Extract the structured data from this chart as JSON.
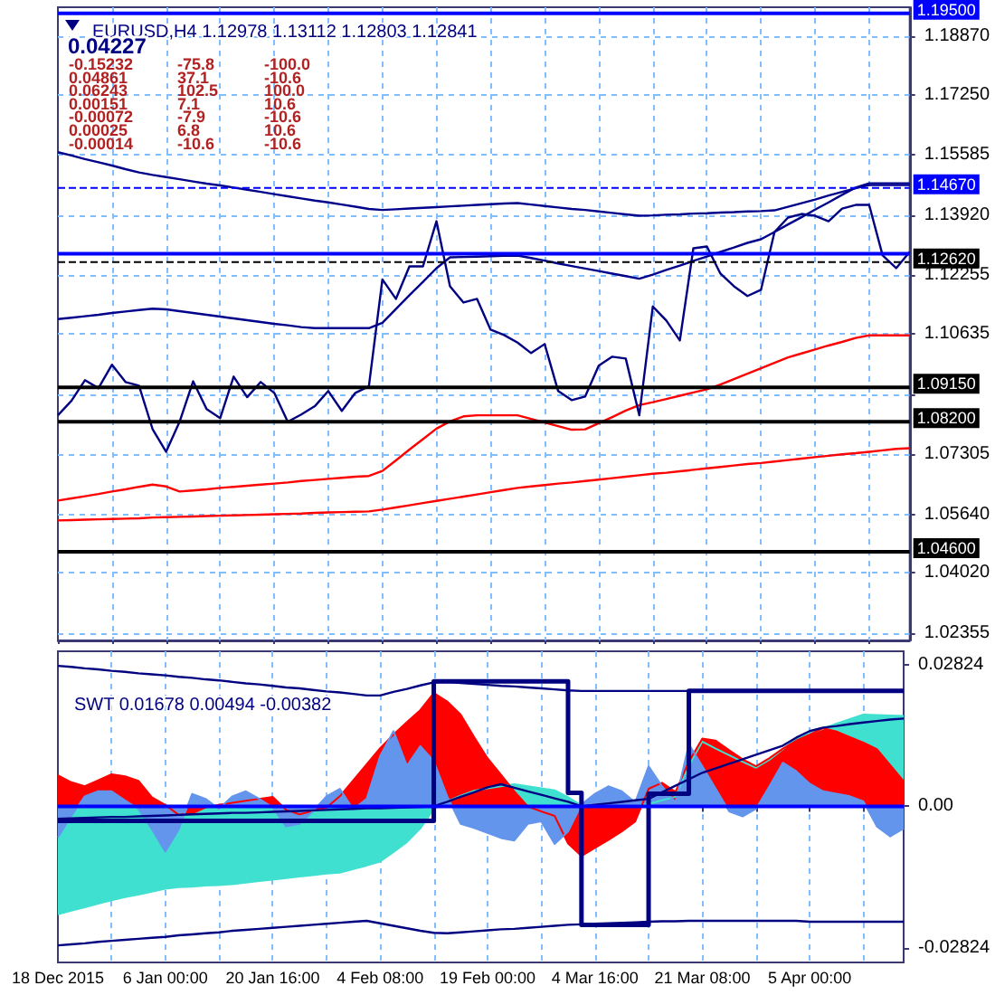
{
  "chart_data": [
    {
      "type": "line",
      "title": "EURUSD,H4 1.12978 1.13112 1.12803 1.12841",
      "annotations": [
        "0.04227",
        "-0.15232",
        "-75.8",
        "-100.0",
        "0.04861",
        "37.1",
        "-10.6",
        "0.06243",
        "102.5",
        "100.0",
        "0.00151",
        "7.1",
        "10.6",
        "-0.00072",
        "-7.9",
        "-10.6",
        "0.00025",
        "6.8",
        "10.6",
        "-0.00014",
        "-10.6",
        "-10.6"
      ],
      "categories": [
        null,
        null,
        null,
        null,
        null,
        null,
        null,
        null,
        null,
        null,
        null,
        null,
        null,
        null,
        null,
        null,
        null,
        null,
        null,
        null,
        null,
        null,
        null,
        null,
        null,
        null,
        null,
        null,
        null,
        null,
        null,
        null,
        null,
        null,
        null,
        null,
        null,
        null,
        null,
        null,
        null,
        null,
        null,
        null,
        null,
        null,
        null,
        null,
        null,
        null,
        null,
        null,
        null,
        null,
        null,
        null,
        null,
        null,
        null,
        null,
        null,
        null,
        null,
        null
      ],
      "ylim": [
        1.0215,
        1.1967
      ],
      "yticks": [
        {
          "value": 1.1887,
          "label": "1.18870"
        },
        {
          "value": 1.1725,
          "label": "1.17250"
        },
        {
          "value": 1.15585,
          "label": "1.15585"
        },
        {
          "value": 1.1392,
          "label": "1.13920"
        },
        {
          "value": 1.12255,
          "label": "1.12255"
        },
        {
          "value": 1.10635,
          "label": "1.10635"
        },
        {
          "value": 1.0897,
          "label": null
        },
        {
          "value": 1.07305,
          "label": "1.07305"
        },
        {
          "value": 1.0564,
          "label": "1.05640"
        },
        {
          "value": 1.0402,
          "label": "1.04020"
        },
        {
          "value": 1.02355,
          "label": "1.02355"
        }
      ],
      "tick_labels": "y",
      "grid": true,
      "ref_lines": [
        {
          "axis": "y",
          "value": 1.195,
          "label": "1.19500",
          "color": "#0000ff",
          "line_style": "solid"
        },
        {
          "axis": "y",
          "value": 1.1467,
          "label": "1.14670",
          "color": "#0000ff",
          "line_style": "dashed"
        },
        {
          "axis": "y",
          "value": 1.1285,
          "label": null,
          "color": "#0000ff",
          "line_style": "solid"
        },
        {
          "axis": "y",
          "value": 1.1262,
          "label": "1.12620",
          "color": "#000000",
          "line_style": "dashed"
        },
        {
          "axis": "y",
          "value": 1.0915,
          "label": "1.09150",
          "color": "#000000",
          "line_style": "solid"
        },
        {
          "axis": "y",
          "value": 1.082,
          "label": "1.08200",
          "color": "#000000",
          "line_style": "solid"
        },
        {
          "axis": "y",
          "value": 1.046,
          "label": "1.04600",
          "color": "#000000",
          "line_style": "solid"
        }
      ],
      "series": [
        {
          "color": "#ff0000",
          "values": [
            1.0602,
            1.0608,
            1.0614,
            1.062,
            1.0627,
            1.0633,
            1.064,
            1.0646,
            1.0641,
            1.0627,
            1.063,
            1.0633,
            1.0637,
            1.064,
            1.0643,
            1.0646,
            1.0649,
            1.0652,
            1.0656,
            1.0659,
            1.0662,
            1.0665,
            1.0668,
            1.067,
            1.0684,
            1.0713,
            1.0743,
            1.0772,
            1.0801,
            1.0821,
            1.0835,
            1.0838,
            1.0838,
            1.0838,
            1.0838,
            1.0828,
            1.0818,
            1.0808,
            1.0798,
            1.0799,
            1.0816,
            1.0833,
            1.0851,
            1.0866,
            1.0874,
            1.0883,
            1.0892,
            1.0901,
            1.091,
            1.0923,
            1.0938,
            1.0953,
            1.0968,
            1.0983,
            1.0998,
            1.1009,
            1.102,
            1.1031,
            1.1041,
            1.1052,
            1.1059,
            1.1059,
            1.1059,
            1.1059
          ]
        },
        {
          "color": "#ff0000",
          "values": [
            1.0547,
            1.0548,
            1.0549,
            1.055,
            1.0551,
            1.0552,
            1.0553,
            1.0555,
            1.0556,
            1.0557,
            1.0558,
            1.0559,
            1.056,
            1.0561,
            1.0562,
            1.0563,
            1.0564,
            1.0565,
            1.0566,
            1.0568,
            1.0569,
            1.057,
            1.0571,
            1.0572,
            1.0577,
            1.0583,
            1.0589,
            1.0595,
            1.0601,
            1.0607,
            1.0613,
            1.0619,
            1.0625,
            1.0631,
            1.0637,
            1.0641,
            1.0645,
            1.0649,
            1.0652,
            1.0656,
            1.066,
            1.0664,
            1.0668,
            1.0672,
            1.0676,
            1.0679,
            1.0683,
            1.0687,
            1.0691,
            1.0695,
            1.0699,
            1.0703,
            1.0706,
            1.071,
            1.0714,
            1.0718,
            1.0722,
            1.0726,
            1.073,
            1.0733,
            1.0737,
            1.0741,
            1.0745,
            1.0747
          ]
        },
        {
          "color": "#00008b",
          "values": [
            1.1566,
            1.1557,
            1.1547,
            1.1538,
            1.1529,
            1.1519,
            1.151,
            1.1503,
            1.1497,
            1.1491,
            1.1485,
            1.1479,
            1.1474,
            1.1468,
            1.1462,
            1.1456,
            1.145,
            1.1444,
            1.1438,
            1.1432,
            1.1427,
            1.1421,
            1.1415,
            1.1409,
            1.1406,
            1.1408,
            1.141,
            1.1412,
            1.1414,
            1.1416,
            1.1418,
            1.142,
            1.1422,
            1.1424,
            1.1425,
            1.1421,
            1.1417,
            1.1413,
            1.1409,
            1.1406,
            1.1402,
            1.1398,
            1.1394,
            1.139,
            1.1391,
            1.1393,
            1.1394,
            1.1396,
            1.1397,
            1.1399,
            1.14,
            1.1402,
            1.1403,
            1.1405,
            1.1415,
            1.1425,
            1.1435,
            1.1446,
            1.1456,
            1.1466,
            1.1475,
            1.1475,
            1.1475,
            1.1475
          ]
        },
        {
          "color": "#00008b",
          "values": [
            1.1104,
            1.1108,
            1.1112,
            1.1116,
            1.1121,
            1.1125,
            1.1129,
            1.1133,
            1.1131,
            1.1126,
            1.1121,
            1.1116,
            1.1111,
            1.1106,
            1.1101,
            1.1096,
            1.1091,
            1.1087,
            1.1082,
            1.1079,
            1.1079,
            1.1079,
            1.1079,
            1.1079,
            1.1094,
            1.1132,
            1.117,
            1.1207,
            1.1245,
            1.1275,
            1.1276,
            1.1277,
            1.1278,
            1.1279,
            1.128,
            1.1273,
            1.1266,
            1.1258,
            1.1251,
            1.1244,
            1.1237,
            1.123,
            1.1223,
            1.1216,
            1.1227,
            1.124,
            1.1252,
            1.1265,
            1.1277,
            1.129,
            1.1302,
            1.1315,
            1.1325,
            1.1345,
            1.1366,
            1.1386,
            1.1407,
            1.1427,
            1.1448,
            1.1468,
            1.148,
            1.148,
            1.148,
            1.148
          ]
        },
        {
          "color": "#000080",
          "values": [
            1.0838,
            1.0878,
            1.0935,
            1.0913,
            1.0978,
            1.093,
            1.092,
            1.08,
            1.0737,
            1.082,
            1.0932,
            1.0855,
            1.083,
            1.0945,
            1.0888,
            1.093,
            1.09,
            1.082,
            1.084,
            1.0863,
            1.0905,
            1.085,
            1.09,
            1.0918,
            1.1214,
            1.116,
            1.125,
            1.125,
            1.1375,
            1.1195,
            1.115,
            1.116,
            1.1075,
            1.106,
            1.1039,
            1.101,
            1.1035,
            1.0905,
            1.088,
            1.089,
            1.0975,
            1.1,
            1.0995,
            1.0838,
            1.1139,
            1.11,
            1.1045,
            1.13,
            1.1305,
            1.123,
            1.1195,
            1.1168,
            1.1185,
            1.1345,
            1.1385,
            1.1395,
            1.139,
            1.1375,
            1.141,
            1.142,
            1.142,
            1.128,
            1.1245,
            1.129
          ]
        }
      ]
    },
    {
      "type": "area",
      "title": "SWT 0.01678 0.00494 -0.00382",
      "categories": [
        "18 Dec 2015",
        null,
        null,
        null,
        null,
        null,
        null,
        null,
        "6 Jan 00:00",
        null,
        null,
        null,
        null,
        null,
        null,
        null,
        "20 Jan 16:00",
        null,
        null,
        null,
        null,
        null,
        null,
        null,
        "4 Feb 08:00",
        null,
        null,
        null,
        null,
        null,
        null,
        null,
        "19 Feb 00:00",
        null,
        null,
        null,
        null,
        null,
        null,
        null,
        "4 Mar 16:00",
        null,
        null,
        null,
        null,
        null,
        null,
        null,
        "21 Mar 08:00",
        null,
        null,
        null,
        null,
        null,
        null,
        null,
        "5 Apr 00:00",
        null,
        null,
        null,
        null,
        null,
        null,
        null
      ],
      "ylim": [
        -0.0311,
        0.0309
      ],
      "yticks": [
        {
          "value": 0.02824,
          "label": "0.02824"
        },
        {
          "value": 0,
          "label": "0.00"
        },
        {
          "value": -0.02824,
          "label": "-0.02824"
        }
      ],
      "grid": "x",
      "ref_lines": [
        {
          "axis": "y",
          "value": 0,
          "label": null,
          "color": "#0000ff",
          "line_style": "solid"
        }
      ],
      "series": [
        {
          "color": "#40e0d0",
          "values": [
            -0.0215,
            -0.0208,
            -0.0201,
            -0.0194,
            -0.0187,
            -0.0181,
            -0.0176,
            -0.017,
            -0.0164,
            -0.0161,
            -0.016,
            -0.0158,
            -0.0157,
            -0.0155,
            -0.0152,
            -0.0149,
            -0.0146,
            -0.0143,
            -0.014,
            -0.0137,
            -0.0134,
            -0.0132,
            -0.0125,
            -0.0118,
            -0.011,
            -0.0091,
            -0.0071,
            -0.0044,
            -0.0005,
            0.001,
            0.0021,
            0.0031,
            0.0036,
            0.004,
            0.0044,
            0.004,
            0.0036,
            0.0032,
            0.0018,
            0.0002,
            0,
            0,
            0,
            0,
            0.0005,
            0.0012,
            0.0019,
            0.008,
            0.0129,
            0.0115,
            0.0102,
            0.0089,
            0.0077,
            0.0093,
            0.0114,
            0.0136,
            0.0145,
            0.0155,
            0.0165,
            0.0174,
            0.0183,
            0.0182,
            0.0181,
            0.018
          ]
        },
        {
          "color": "#ff0000",
          "values": [
            0.0062,
            0.0048,
            0.004,
            0.0052,
            0.0064,
            0.006,
            0.0051,
            0.0018,
            0.0003,
            -0.0017,
            -0.0014,
            -0.0002,
            0.0003,
            0.0007,
            0.0011,
            0.0015,
            0.0019,
            -0.0007,
            -0.0016,
            -0.0009,
            -0.0003,
            0.002,
            0.0052,
            0.0084,
            0.0116,
            0.0143,
            0.0168,
            0.0192,
            0.0226,
            0.0209,
            0.0183,
            0.0138,
            0.0096,
            0.0063,
            0.003,
            0,
            -0.001,
            -0.0019,
            -0.0074,
            -0.0099,
            -0.0083,
            -0.0067,
            -0.005,
            -0.003,
            0.0035,
            0.0047,
            0.0029,
            0.0089,
            0.0135,
            0.0131,
            0.0112,
            0.0094,
            0.008,
            0.0096,
            0.0115,
            0.0131,
            0.0143,
            0.0156,
            0.0149,
            0.0138,
            0.0127,
            0.0114,
            0.0082,
            0.005
          ]
        },
        {
          "color": "#6495ed",
          "values": [
            -0.0062,
            -0.0019,
            0.002,
            0.003,
            0.003,
            0.0012,
            -0.0005,
            -0.0045,
            -0.009,
            -0.0046,
            0.0025,
            0.0015,
            -0.0005,
            0.002,
            0.003,
            0.0015,
            -0.0002,
            -0.004,
            -0.0035,
            -0.001,
            0.002,
            0.0035,
            -0.0006,
            0.0015,
            0.01,
            0.015,
            0.0081,
            0.012,
            0.009,
            0.002,
            -0.0035,
            -0.0043,
            -0.0053,
            -0.0063,
            -0.0068,
            -0.0035,
            -0.003,
            -0.0075,
            -0.005,
            0.0004,
            0.0025,
            0.004,
            0.003,
            0.0008,
            0.008,
            0.004,
            0.0008,
            0.0124,
            0.008,
            0.0035,
            -0.001,
            -0.002,
            -0.0005,
            0.004,
            0.0087,
            0.007,
            0.0045,
            0.003,
            0.0025,
            0.002,
            0.001,
            -0.004,
            -0.006,
            -0.0044
          ]
        },
        {
          "type": "line",
          "color": "#000080",
          "values": [
            -0.0025,
            -0.0024,
            -0.0023,
            -0.0022,
            -0.0021,
            -0.0021,
            -0.002,
            -0.0019,
            -0.0018,
            -0.0017,
            -0.0016,
            -0.0015,
            -0.0014,
            -0.0013,
            -0.0013,
            -0.0012,
            -0.0011,
            -0.001,
            -0.0009,
            -0.0008,
            -0.0007,
            -0.0006,
            -0.0005,
            -0.0004,
            -0.0004,
            -0.0003,
            -0.0002,
            -0.0001,
            0,
            0.0009,
            0.0019,
            0.0028,
            0.0038,
            0.0044,
            0.0037,
            0.003,
            0.0023,
            0.0016,
            0.0009,
            0,
            0.0003,
            0.0006,
            0.0009,
            0.0012,
            0.0015,
            0.0028,
            0.0041,
            0.0054,
            0.0067,
            0.0076,
            0.0085,
            0.0094,
            0.0103,
            0.0112,
            0.0121,
            0.0137,
            0.015,
            0.0157,
            0.016,
            0.0164,
            0.0167,
            0.017,
            0.0173,
            0.0175
          ]
        },
        {
          "type": "line",
          "color": "#000080",
          "values": [
            0.028,
            0.0278,
            0.0275,
            0.0273,
            0.027,
            0.0268,
            0.0265,
            0.0263,
            0.0261,
            0.0258,
            0.0256,
            0.0253,
            0.0251,
            0.0248,
            0.0245,
            0.0243,
            0.024,
            0.0237,
            0.0235,
            0.0232,
            0.0229,
            0.0227,
            0.0224,
            0.0221,
            0.0221,
            0.0228,
            0.0234,
            0.0241,
            0.0247,
            0.0248,
            0.0246,
            0.0244,
            0.0242,
            0.024,
            0.0239,
            0.0237,
            0.0235,
            0.0233,
            0.0231,
            0.023,
            0.023,
            0.023,
            0.023,
            0.023,
            0.023,
            0.023,
            0.023,
            0.023,
            0.023,
            0.023,
            0.023,
            0.023,
            0.023,
            0.023,
            0.023,
            0.023,
            0.023,
            0.023,
            0.023,
            0.023,
            0.023,
            0.023,
            0.023,
            0.023
          ]
        },
        {
          "type": "line",
          "color": "#000080",
          "values": [
            -0.0277,
            -0.0275,
            -0.0273,
            -0.027,
            -0.0268,
            -0.0266,
            -0.0264,
            -0.0262,
            -0.026,
            -0.0257,
            -0.0255,
            -0.0253,
            -0.0251,
            -0.0248,
            -0.0246,
            -0.0244,
            -0.0242,
            -0.024,
            -0.0238,
            -0.0236,
            -0.0234,
            -0.0232,
            -0.023,
            -0.0228,
            -0.0233,
            -0.0238,
            -0.0243,
            -0.0248,
            -0.0252,
            -0.0253,
            -0.0251,
            -0.0249,
            -0.0247,
            -0.0245,
            -0.0244,
            -0.0242,
            -0.024,
            -0.0238,
            -0.0236,
            -0.0235,
            -0.0234,
            -0.0233,
            -0.0232,
            -0.0231,
            -0.023,
            -0.0229,
            -0.0229,
            -0.0228,
            -0.0228,
            -0.0228,
            -0.0228,
            -0.0228,
            -0.0228,
            -0.0228,
            -0.0228,
            -0.0228,
            -0.023,
            -0.023,
            -0.023,
            -0.023,
            -0.023,
            -0.023,
            -0.023,
            -0.023
          ]
        },
        {
          "type": "step",
          "color": "#000080",
          "values": [
            -0.0029,
            -0.0029,
            -0.0029,
            -0.0029,
            -0.0029,
            -0.0029,
            -0.0029,
            -0.0029,
            -0.0029,
            -0.0029,
            -0.0029,
            -0.0029,
            -0.0029,
            -0.0029,
            -0.0029,
            -0.0029,
            -0.0029,
            -0.0029,
            -0.0029,
            -0.0029,
            -0.0029,
            -0.0029,
            -0.0029,
            -0.0029,
            -0.0029,
            -0.0029,
            -0.0029,
            -0.0029,
            0.0249,
            0.0249,
            0.0249,
            0.0249,
            0.0249,
            0.0249,
            0.0249,
            0.0249,
            0.0249,
            0.0249,
            0.0027,
            -0.0236,
            -0.0236,
            -0.0236,
            -0.0236,
            -0.0236,
            0.0025,
            0.0025,
            0.0025,
            0.023,
            0.023,
            0.023,
            0.023,
            0.023,
            0.023,
            0.023,
            0.023,
            0.023,
            0.023,
            0.023,
            0.023,
            0.023,
            0.023,
            0.023,
            0.023,
            0.023
          ]
        }
      ]
    }
  ]
}
